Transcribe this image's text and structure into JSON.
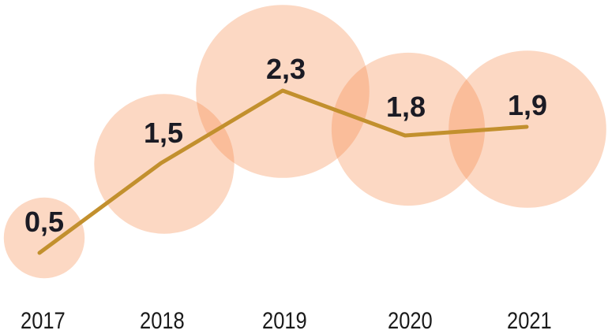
{
  "chart_data": {
    "type": "line",
    "subtype": "line-with-area-proportional-bubbles",
    "title": "",
    "xlabel": "",
    "ylabel": "",
    "categories": [
      "2017",
      "2018",
      "2019",
      "2020",
      "2021"
    ],
    "values": [
      0.5,
      1.5,
      2.3,
      1.8,
      1.9
    ],
    "value_labels": [
      "0,5",
      "1,5",
      "2,3",
      "1,8",
      "1,9"
    ],
    "decimal_separator": ",",
    "series": [
      {
        "name": "value-by-year",
        "values": [
          0.5,
          1.5,
          2.3,
          1.8,
          1.9
        ]
      }
    ],
    "ylim": [
      0,
      2.5
    ],
    "grid": false,
    "axes_visible": false,
    "legend_position": "none",
    "bubble_sizing": "area proportional to value",
    "colors": {
      "background": "#FFFFFF",
      "bubble_fill": "#F58744",
      "bubble_opacity": 0.32,
      "line": "#C2902E",
      "value_label": "#1B1B24",
      "tick_label": "#1A1A1A"
    }
  }
}
